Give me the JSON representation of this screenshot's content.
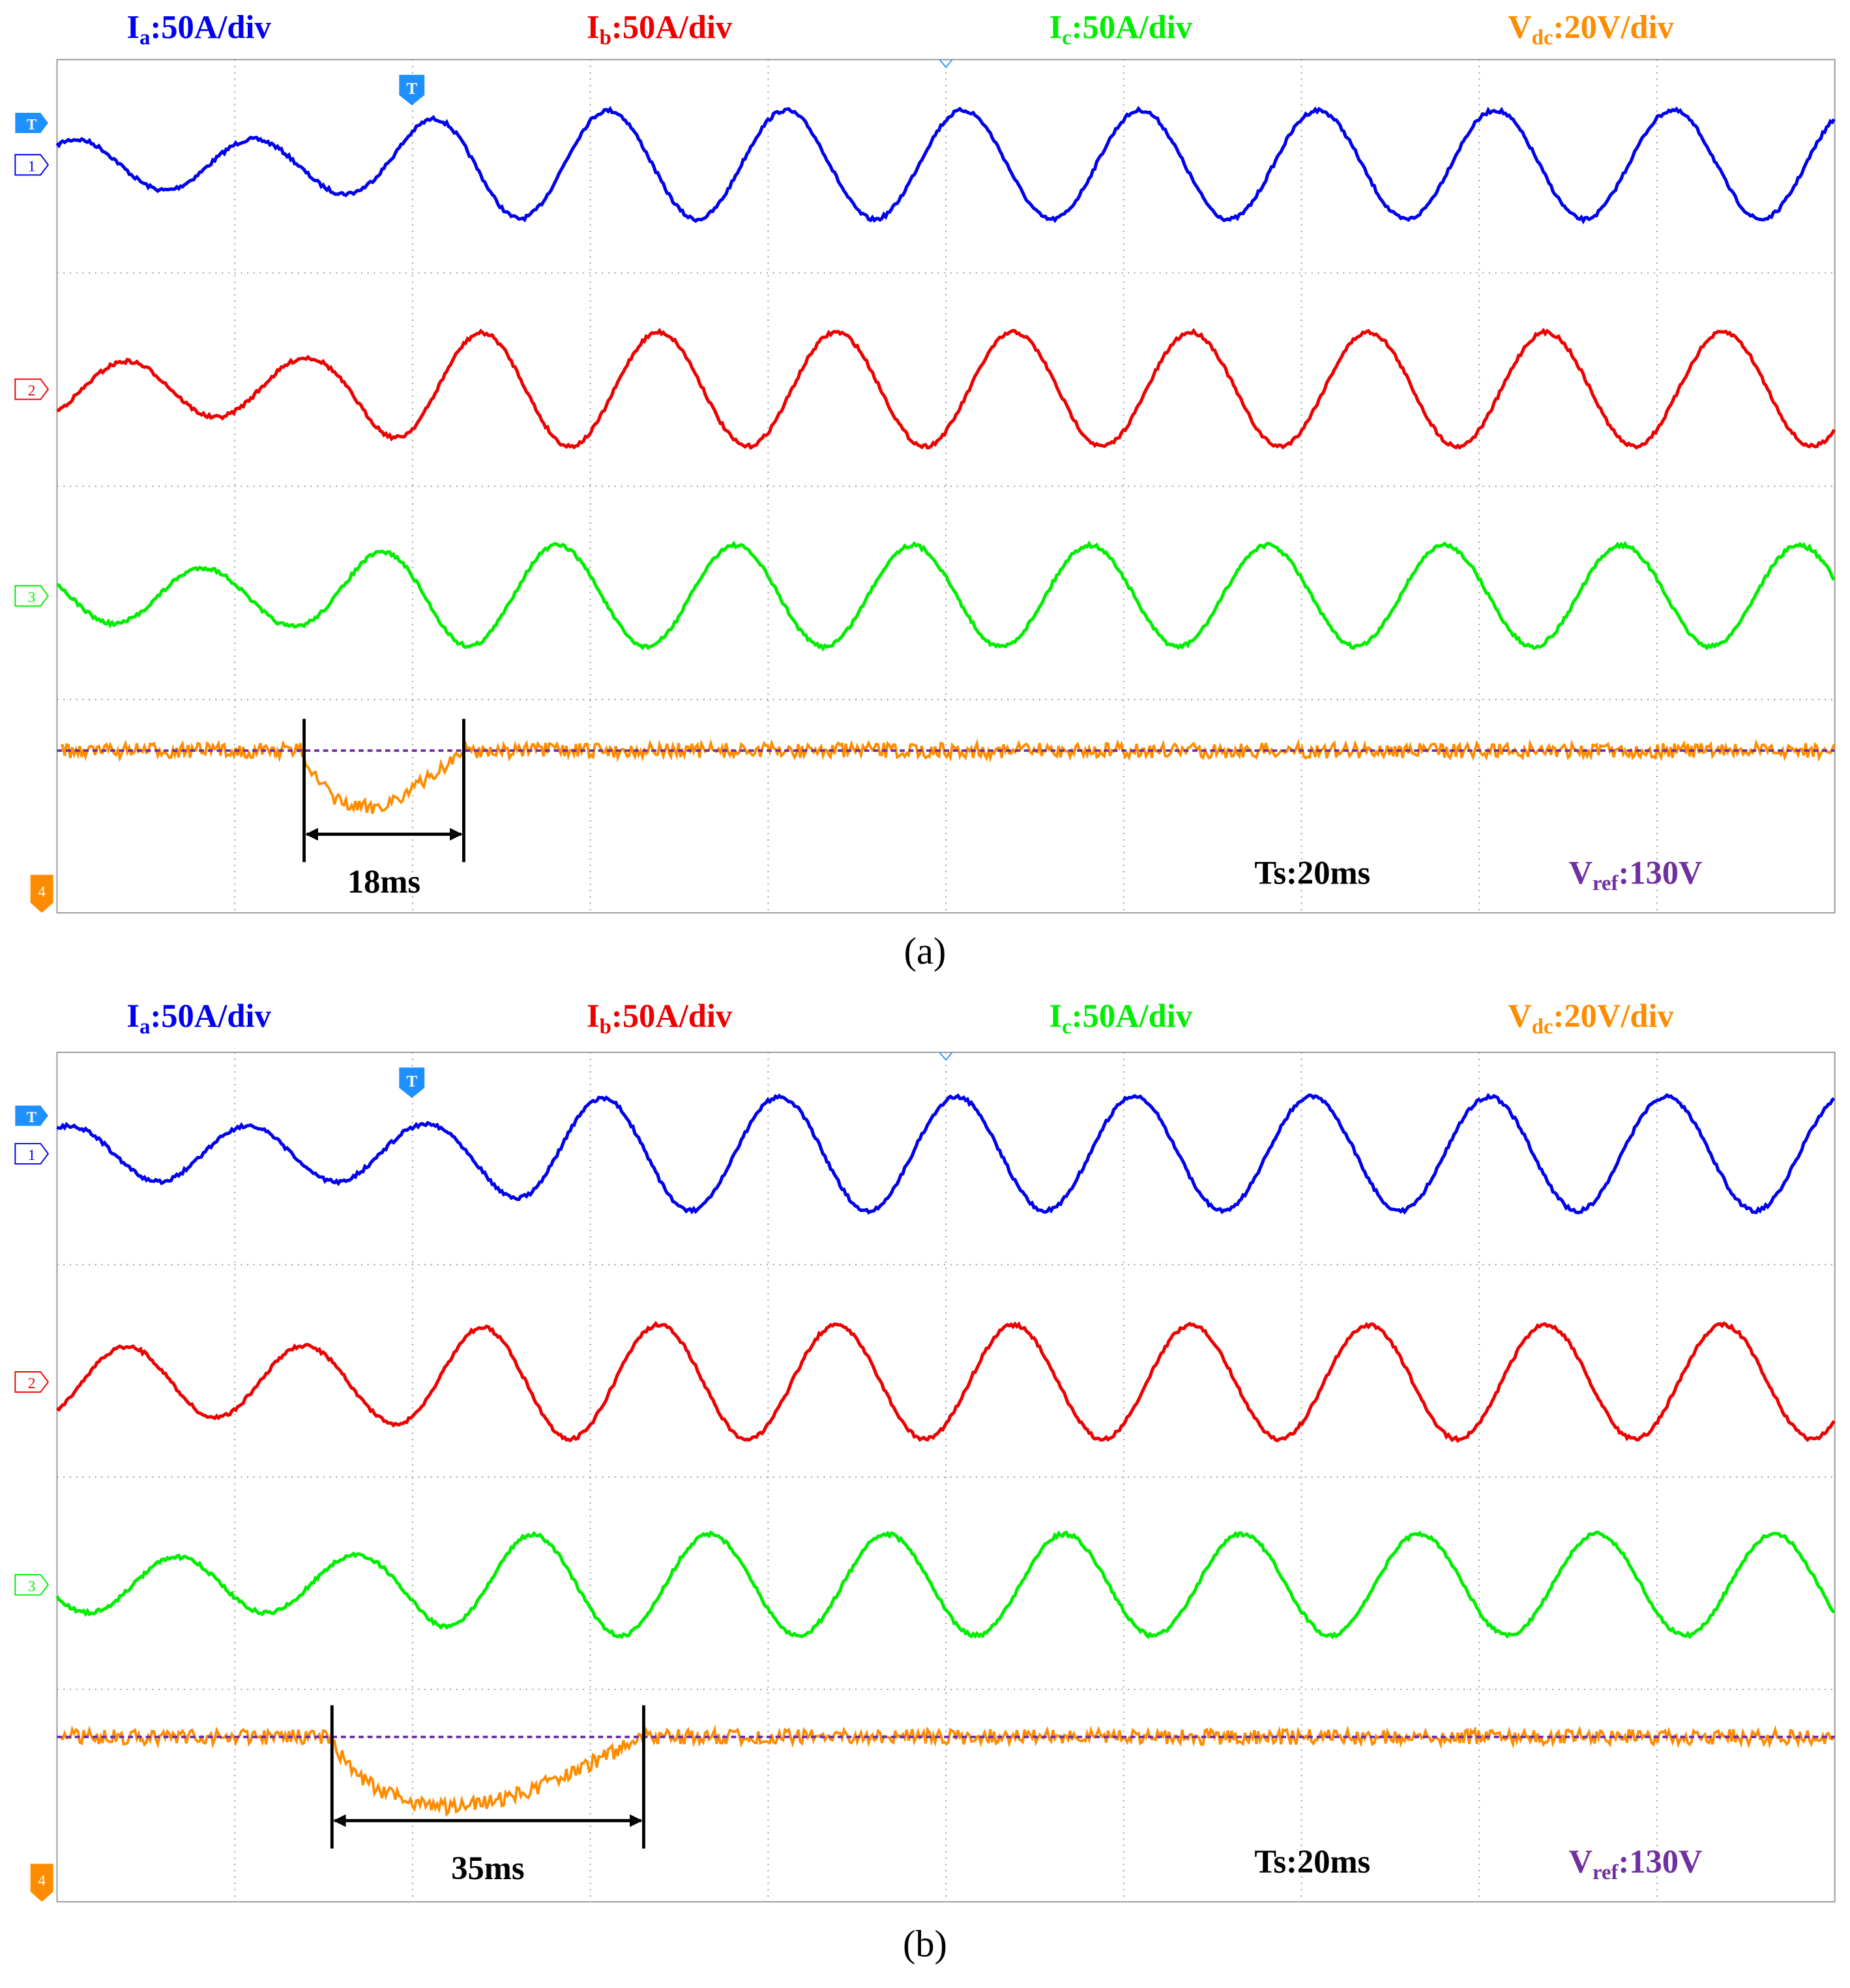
{
  "panels": [
    {
      "caption": "(a)",
      "headers": [
        {
          "main": "I",
          "sub": "a",
          "rest": ":50A/div"
        },
        {
          "main": "I",
          "sub": "b",
          "rest": ":50A/div"
        },
        {
          "main": "I",
          "sub": "c",
          "rest": ":50A/div"
        },
        {
          "main": "V",
          "sub": "dc",
          "rest": ":20V/div"
        }
      ],
      "channels": [
        "1",
        "2",
        "3",
        "4"
      ],
      "trigger": "T",
      "duration": "18ms",
      "timebase": "Ts:20ms",
      "reference": {
        "main": "V",
        "sub": "ref",
        "rest": ":130V"
      }
    },
    {
      "caption": "(b)",
      "headers": [
        {
          "main": "I",
          "sub": "a",
          "rest": ":50A/div"
        },
        {
          "main": "I",
          "sub": "b",
          "rest": ":50A/div"
        },
        {
          "main": "I",
          "sub": "c",
          "rest": ":50A/div"
        },
        {
          "main": "V",
          "sub": "dc",
          "rest": ":20V/div"
        }
      ],
      "channels": [
        "1",
        "2",
        "3",
        "4"
      ],
      "trigger": "T",
      "duration": "35ms",
      "timebase": "Ts:20ms",
      "reference": {
        "main": "V",
        "sub": "ref",
        "rest": ":130V"
      }
    }
  ]
}
